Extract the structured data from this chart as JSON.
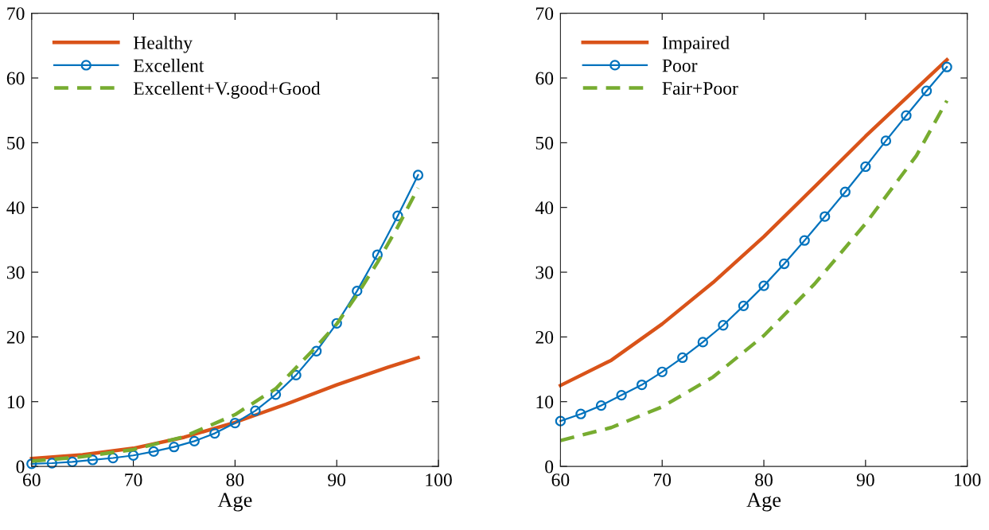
{
  "chart_data": [
    {
      "type": "line",
      "xlabel": "Age",
      "xlim": [
        60,
        100
      ],
      "xticks": [
        60,
        70,
        80,
        90,
        100
      ],
      "ylim": [
        0,
        70
      ],
      "yticks": [
        0,
        10,
        20,
        30,
        40,
        50,
        60,
        70
      ],
      "legend": "top left",
      "grid": false,
      "series": [
        {
          "name": "Healthy",
          "color": "#d95319",
          "marker": "none",
          "line_style": "solid",
          "x": [
            60,
            65,
            70,
            75,
            80,
            85,
            90,
            95,
            98
          ],
          "values": [
            1.2,
            1.8,
            2.8,
            4.5,
            6.8,
            9.6,
            12.6,
            15.3,
            16.8
          ]
        },
        {
          "name": "Excellent",
          "color": "#0072bd",
          "marker": "circle",
          "line_style": "solid",
          "x": [
            60,
            62,
            64,
            66,
            68,
            70,
            72,
            74,
            76,
            78,
            80,
            82,
            84,
            86,
            88,
            90,
            92,
            94,
            96,
            98
          ],
          "values": [
            0.4,
            0.5,
            0.7,
            1.0,
            1.3,
            1.7,
            2.3,
            3.0,
            3.9,
            5.1,
            6.7,
            8.6,
            11.1,
            14.1,
            17.8,
            22.1,
            27.1,
            32.7,
            38.7,
            45.0
          ]
        },
        {
          "name": "Excellent+V.good+Good",
          "color": "#77ac30",
          "marker": "none",
          "line_style": "dashed",
          "x": [
            60,
            65,
            70,
            75,
            80,
            84,
            88,
            90,
            92,
            94,
            96,
            98
          ],
          "values": [
            0.8,
            1.5,
            2.6,
            4.6,
            8.0,
            12.0,
            18.5,
            22.0,
            26.5,
            31.5,
            37.0,
            43.0
          ]
        }
      ]
    },
    {
      "type": "line",
      "xlabel": "Age",
      "xlim": [
        60,
        100
      ],
      "xticks": [
        60,
        70,
        80,
        90,
        100
      ],
      "ylim": [
        0,
        70
      ],
      "yticks": [
        0,
        10,
        20,
        30,
        40,
        50,
        60,
        70
      ],
      "legend": "top left",
      "grid": false,
      "series": [
        {
          "name": "Impaired",
          "color": "#d95319",
          "marker": "none",
          "line_style": "solid",
          "x": [
            60,
            65,
            70,
            75,
            80,
            85,
            90,
            95,
            98
          ],
          "values": [
            12.5,
            16.4,
            22.0,
            28.4,
            35.5,
            43.2,
            51.0,
            58.4,
            62.8
          ]
        },
        {
          "name": "Poor",
          "color": "#0072bd",
          "marker": "circle",
          "line_style": "solid",
          "x": [
            60,
            62,
            64,
            66,
            68,
            70,
            72,
            74,
            76,
            78,
            80,
            82,
            84,
            86,
            88,
            90,
            92,
            94,
            96,
            98
          ],
          "values": [
            7.0,
            8.1,
            9.4,
            11.0,
            12.6,
            14.6,
            16.8,
            19.2,
            21.8,
            24.8,
            27.9,
            31.3,
            34.9,
            38.6,
            42.4,
            46.3,
            50.3,
            54.2,
            58.0,
            61.7
          ]
        },
        {
          "name": "Fair+Poor",
          "color": "#77ac30",
          "marker": "none",
          "line_style": "dashed",
          "x": [
            60,
            65,
            70,
            75,
            80,
            85,
            90,
            95,
            98
          ],
          "values": [
            4.0,
            6.0,
            9.2,
            13.8,
            20.2,
            28.2,
            37.5,
            48.0,
            56.5
          ]
        }
      ]
    }
  ]
}
